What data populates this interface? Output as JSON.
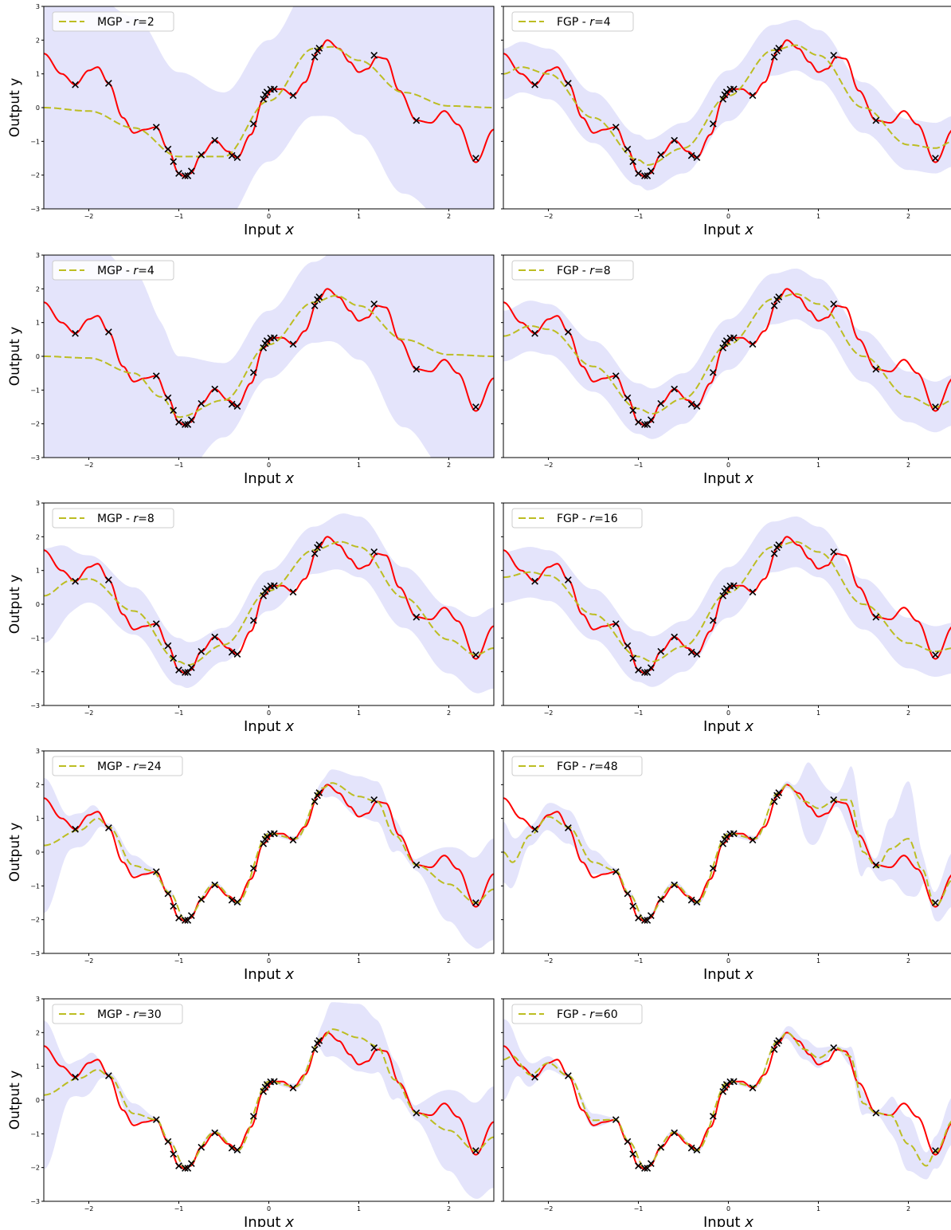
{
  "figure": {
    "shared_ylabel": "Output y",
    "shared_xlabel_text": "Input",
    "shared_xlabel_var": "x"
  },
  "colors": {
    "band": "#e4e4fb",
    "truth": "#ff0000",
    "mean": "#bcbd22",
    "points": "#000000",
    "axes": "#000000"
  },
  "chart_data": [
    {
      "type": "line",
      "panel": "MGP r=2",
      "legend": {
        "method": "MGP",
        "sep": " - ",
        "var": "r",
        "eq": "=",
        "value": "2"
      },
      "xlim": [
        -2.5,
        2.5
      ],
      "ylim": [
        -3,
        3
      ],
      "xticks": [
        -2,
        -1,
        0,
        1,
        2
      ],
      "yticks": [
        -3,
        -2,
        -1,
        0,
        1,
        2,
        3
      ],
      "show_yticklabels": true,
      "show_ylabel": true,
      "mean": {
        "x": [
          -2.5,
          -2.0,
          -1.5,
          -1.0,
          -0.5,
          0.0,
          0.5,
          0.7,
          1.0,
          1.5,
          2.0,
          2.5
        ],
        "y": [
          0.0,
          -0.1,
          -0.6,
          -1.45,
          -1.45,
          0.2,
          1.75,
          1.8,
          1.4,
          0.45,
          0.05,
          0.0
        ]
      },
      "band_width": {
        "x": [
          -2.5,
          -2.0,
          -1.5,
          -1.0,
          -0.5,
          0.0,
          0.5,
          1.0,
          1.5,
          2.0,
          2.5
        ],
        "w": [
          3.5,
          3.5,
          3.3,
          2.5,
          1.9,
          1.8,
          2.0,
          2.2,
          3.0,
          3.5,
          3.5
        ]
      }
    },
    {
      "type": "line",
      "panel": "FGP r=4",
      "legend": {
        "method": "FGP",
        "sep": " - ",
        "var": "r",
        "eq": "=",
        "value": "4"
      },
      "xlim": [
        -2.5,
        2.5
      ],
      "ylim": [
        -3,
        3
      ],
      "xticks": [
        -2,
        -1,
        0,
        1,
        2
      ],
      "yticks": [
        -3,
        -2,
        -1,
        0,
        1,
        2,
        3
      ],
      "show_yticklabels": false,
      "show_ylabel": false,
      "mean": {
        "x": [
          -2.5,
          -2.3,
          -2.0,
          -1.5,
          -1.0,
          -0.9,
          -0.5,
          0.0,
          0.5,
          0.75,
          1.0,
          1.5,
          2.0,
          2.3,
          2.5
        ],
        "y": [
          1.0,
          1.2,
          1.0,
          -0.3,
          -1.55,
          -1.7,
          -1.2,
          0.35,
          1.7,
          1.85,
          1.55,
          0.0,
          -1.1,
          -1.2,
          -1.0
        ]
      },
      "band_width": {
        "x": [
          -2.5,
          2.5
        ],
        "w": [
          0.75,
          0.75
        ]
      }
    },
    {
      "type": "line",
      "panel": "MGP r=4",
      "legend": {
        "method": "MGP",
        "sep": " - ",
        "var": "r",
        "eq": "=",
        "value": "4"
      },
      "xlim": [
        -2.5,
        2.5
      ],
      "ylim": [
        -3,
        3
      ],
      "xticks": [
        -2,
        -1,
        0,
        1,
        2
      ],
      "yticks": [
        -3,
        -2,
        -1,
        0,
        1,
        2,
        3
      ],
      "show_yticklabels": true,
      "show_ylabel": true,
      "mean": {
        "x": [
          -2.5,
          -2.0,
          -1.5,
          -1.2,
          -1.0,
          -0.5,
          0.0,
          0.5,
          0.75,
          1.0,
          1.5,
          2.0,
          2.5
        ],
        "y": [
          0.0,
          -0.05,
          -0.5,
          -1.2,
          -1.8,
          -1.3,
          0.35,
          1.6,
          1.8,
          1.5,
          0.5,
          0.05,
          0.0
        ]
      },
      "band_width": {
        "x": [
          -2.5,
          -2.0,
          -1.5,
          -1.0,
          -0.5,
          0.0,
          0.5,
          1.0,
          1.5,
          2.0,
          2.5
        ],
        "w": [
          3.5,
          3.5,
          3.0,
          1.8,
          1.1,
          1.0,
          1.2,
          1.6,
          2.6,
          3.5,
          3.5
        ]
      }
    },
    {
      "type": "line",
      "panel": "FGP r=8",
      "legend": {
        "method": "FGP",
        "sep": " - ",
        "var": "r",
        "eq": "=",
        "value": "8"
      },
      "xlim": [
        -2.5,
        2.5
      ],
      "ylim": [
        -3,
        3
      ],
      "xticks": [
        -2,
        -1,
        0,
        1,
        2
      ],
      "yticks": [
        -3,
        -2,
        -1,
        0,
        1,
        2,
        3
      ],
      "show_yticklabels": false,
      "show_ylabel": false,
      "mean": {
        "x": [
          -2.5,
          -2.2,
          -2.0,
          -1.5,
          -1.0,
          -0.85,
          -0.5,
          0.0,
          0.5,
          0.75,
          1.0,
          1.5,
          2.0,
          2.3,
          2.5
        ],
        "y": [
          0.6,
          0.9,
          0.8,
          -0.3,
          -1.55,
          -1.7,
          -1.25,
          0.35,
          1.7,
          1.85,
          1.55,
          0.0,
          -1.2,
          -1.5,
          -1.3
        ]
      },
      "band_width": {
        "x": [
          -2.5,
          2.5
        ],
        "w": [
          0.75,
          0.75
        ]
      }
    },
    {
      "type": "line",
      "panel": "MGP r=8",
      "legend": {
        "method": "MGP",
        "sep": " - ",
        "var": "r",
        "eq": "=",
        "value": "8"
      },
      "xlim": [
        -2.5,
        2.5
      ],
      "ylim": [
        -3,
        3
      ],
      "xticks": [
        -2,
        -1,
        0,
        1,
        2
      ],
      "yticks": [
        -3,
        -2,
        -1,
        0,
        1,
        2,
        3
      ],
      "show_yticklabels": true,
      "show_ylabel": true,
      "mean": {
        "x": [
          -2.5,
          -2.2,
          -2.0,
          -1.5,
          -1.0,
          -0.9,
          -0.5,
          0.0,
          0.5,
          0.8,
          1.0,
          1.5,
          2.0,
          2.3,
          2.5
        ],
        "y": [
          0.25,
          0.7,
          0.75,
          -0.2,
          -1.7,
          -1.8,
          -1.2,
          0.4,
          1.6,
          1.85,
          1.7,
          0.2,
          -1.05,
          -1.5,
          -1.3
        ]
      },
      "band_width": {
        "x": [
          -2.5,
          -2.0,
          -1.5,
          -1.0,
          -0.5,
          0.0,
          0.5,
          1.0,
          1.5,
          2.0,
          2.5
        ],
        "w": [
          1.4,
          0.7,
          0.7,
          0.7,
          0.5,
          0.6,
          0.7,
          0.9,
          0.9,
          1.0,
          1.2
        ]
      }
    },
    {
      "type": "line",
      "panel": "FGP r=16",
      "legend": {
        "method": "FGP",
        "sep": " - ",
        "var": "r",
        "eq": "=",
        "value": "16"
      },
      "xlim": [
        -2.5,
        2.5
      ],
      "ylim": [
        -3,
        3
      ],
      "xticks": [
        -2,
        -1,
        0,
        1,
        2
      ],
      "yticks": [
        -3,
        -2,
        -1,
        0,
        1,
        2,
        3
      ],
      "show_yticklabels": false,
      "show_ylabel": false,
      "mean": {
        "x": [
          -2.5,
          -2.2,
          -2.0,
          -1.5,
          -1.0,
          -0.85,
          -0.5,
          0.0,
          0.5,
          0.75,
          1.0,
          1.5,
          2.0,
          2.3,
          2.5
        ],
        "y": [
          0.8,
          0.95,
          0.85,
          -0.3,
          -1.55,
          -1.7,
          -1.25,
          0.35,
          1.7,
          1.85,
          1.55,
          0.0,
          -1.15,
          -1.4,
          -1.3
        ]
      },
      "band_width": {
        "x": [
          -2.5,
          2.5
        ],
        "w": [
          0.75,
          0.75
        ]
      }
    },
    {
      "type": "line",
      "panel": "MGP r=24",
      "legend": {
        "method": "MGP",
        "sep": " - ",
        "var": "r",
        "eq": "=",
        "value": "24"
      },
      "xlim": [
        -2.5,
        2.5
      ],
      "ylim": [
        -3,
        3
      ],
      "xticks": [
        -2,
        -1,
        0,
        1,
        2
      ],
      "yticks": [
        -3,
        -2,
        -1,
        0,
        1,
        2,
        3
      ],
      "show_yticklabels": true,
      "show_ylabel": true,
      "mean": {
        "x": [
          -2.5,
          -2.1,
          -1.9,
          -1.78,
          -1.5,
          -1.3,
          -1.1,
          -0.93,
          -0.6,
          -0.35,
          0.0,
          0.3,
          0.6,
          0.7,
          1.0,
          1.2,
          1.4,
          1.64,
          2.0,
          2.3,
          2.5
        ],
        "y": [
          0.2,
          0.65,
          1.0,
          0.75,
          -0.4,
          -0.55,
          -1.2,
          -2.0,
          -0.95,
          -1.5,
          0.55,
          0.4,
          1.9,
          2.05,
          1.65,
          1.5,
          0.5,
          -0.38,
          -0.95,
          -1.5,
          -1.1
        ]
      },
      "band_width": {
        "x": [
          -2.5,
          -2.2,
          -2.0,
          -1.8,
          -1.5,
          -1.25,
          -1.0,
          0.0,
          0.5,
          0.7,
          1.0,
          1.3,
          1.6,
          2.0,
          2.2,
          2.5
        ],
        "w": [
          2.0,
          0.5,
          0.5,
          0.1,
          0.3,
          0.08,
          0.06,
          0.06,
          0.08,
          0.4,
          0.6,
          0.6,
          0.15,
          1.1,
          1.3,
          1.5
        ]
      }
    },
    {
      "type": "line",
      "panel": "FGP r=48",
      "legend": {
        "method": "FGP",
        "sep": " - ",
        "var": "r",
        "eq": "=",
        "value": "48"
      },
      "xlim": [
        -2.5,
        2.5
      ],
      "ylim": [
        -3,
        3
      ],
      "xticks": [
        -2,
        -1,
        0,
        1,
        2
      ],
      "yticks": [
        -3,
        -2,
        -1,
        0,
        1,
        2,
        3
      ],
      "show_yticklabels": false,
      "show_ylabel": false,
      "mean": {
        "x": [
          -2.5,
          -2.4,
          -2.2,
          -2.0,
          -1.78,
          -1.5,
          -1.25,
          -1.1,
          -0.93,
          -0.6,
          -0.35,
          0.0,
          0.3,
          0.55,
          0.65,
          0.85,
          1.0,
          1.2,
          1.35,
          1.5,
          1.65,
          1.8,
          2.0,
          2.15,
          2.3,
          2.5
        ],
        "y": [
          0.0,
          -0.3,
          0.5,
          1.05,
          0.75,
          -0.3,
          -0.55,
          -1.25,
          -2.0,
          -0.95,
          -1.5,
          0.55,
          0.4,
          1.75,
          2.0,
          1.5,
          1.3,
          1.55,
          1.55,
          0.0,
          -0.45,
          0.1,
          0.4,
          -0.5,
          -1.6,
          -0.8
        ]
      },
      "band_width": {
        "x": [
          -2.5,
          -2.2,
          -1.8,
          -1.5,
          -1.25,
          0.5,
          0.7,
          0.9,
          1.2,
          1.4,
          1.6,
          1.8,
          2.0,
          2.2,
          2.5
        ],
        "w": [
          0.9,
          0.3,
          0.5,
          0.35,
          0.08,
          0.08,
          0.1,
          1.2,
          0.2,
          1.1,
          0.2,
          0.9,
          1.7,
          0.3,
          0.8
        ]
      }
    },
    {
      "type": "line",
      "panel": "MGP r=30",
      "legend": {
        "method": "MGP",
        "sep": " - ",
        "var": "r",
        "eq": "=",
        "value": "30"
      },
      "xlim": [
        -2.5,
        2.5
      ],
      "ylim": [
        -3,
        3
      ],
      "xticks": [
        -2,
        -1,
        0,
        1,
        2
      ],
      "yticks": [
        -3,
        -2,
        -1,
        0,
        1,
        2,
        3
      ],
      "show_yticklabels": true,
      "show_ylabel": true,
      "mean": {
        "x": [
          -2.5,
          -2.1,
          -1.9,
          -1.78,
          -1.5,
          -1.25,
          -1.1,
          -0.93,
          -0.6,
          -0.35,
          0.0,
          0.3,
          0.6,
          0.7,
          1.0,
          1.2,
          1.4,
          1.64,
          2.0,
          2.3,
          2.5
        ],
        "y": [
          0.15,
          0.65,
          0.9,
          0.72,
          -0.4,
          -0.58,
          -1.25,
          -2.0,
          -0.95,
          -1.5,
          0.55,
          0.4,
          1.85,
          2.1,
          1.85,
          1.6,
          0.6,
          -0.38,
          -0.9,
          -1.5,
          -1.1
        ]
      },
      "band_width": {
        "x": [
          -2.5,
          -2.2,
          -2.0,
          -1.8,
          -1.5,
          -1.25,
          -1.0,
          0.0,
          0.5,
          0.7,
          1.0,
          1.3,
          1.6,
          2.0,
          2.2,
          2.5
        ],
        "w": [
          2.2,
          0.5,
          0.6,
          0.1,
          0.3,
          0.08,
          0.06,
          0.06,
          0.1,
          0.8,
          1.0,
          0.7,
          0.2,
          1.2,
          1.4,
          1.5
        ]
      }
    },
    {
      "type": "line",
      "panel": "FGP r=60",
      "legend": {
        "method": "FGP",
        "sep": " - ",
        "var": "r",
        "eq": "=",
        "value": "60"
      },
      "xlim": [
        -2.5,
        2.5
      ],
      "ylim": [
        -3,
        3
      ],
      "xticks": [
        -2,
        -1,
        0,
        1,
        2
      ],
      "yticks": [
        -3,
        -2,
        -1,
        0,
        1,
        2,
        3
      ],
      "show_yticklabels": false,
      "show_ylabel": false,
      "mean": {
        "x": [
          -2.5,
          -2.4,
          -2.2,
          -2.0,
          -1.78,
          -1.5,
          -1.25,
          -1.1,
          -0.93,
          -0.6,
          -0.35,
          0.0,
          0.3,
          0.55,
          0.65,
          0.85,
          1.0,
          1.2,
          1.35,
          1.5,
          1.64,
          1.8,
          2.0,
          2.2,
          2.3,
          2.5
        ],
        "y": [
          1.2,
          1.3,
          0.75,
          1.1,
          0.72,
          -0.6,
          -0.58,
          -1.25,
          -2.0,
          -0.95,
          -1.5,
          0.55,
          0.4,
          1.75,
          2.0,
          1.5,
          1.25,
          1.55,
          1.3,
          -0.1,
          -0.38,
          -0.45,
          -1.3,
          -1.95,
          -1.55,
          -0.6
        ]
      },
      "band_width": {
        "x": [
          -2.5,
          -2.3,
          -2.0,
          -1.78,
          -1.5,
          -1.25,
          0.5,
          0.8,
          1.0,
          1.2,
          1.45,
          1.64,
          1.85,
          2.0,
          2.2,
          2.5
        ],
        "w": [
          1.2,
          0.4,
          0.2,
          0.05,
          0.2,
          0.06,
          0.06,
          0.3,
          0.3,
          0.06,
          0.4,
          0.06,
          0.6,
          0.8,
          0.4,
          0.7
        ]
      }
    }
  ],
  "truth_points": [
    [
      -2.15,
      0.68
    ],
    [
      -1.78,
      0.72
    ],
    [
      -1.25,
      -0.58
    ],
    [
      -1.12,
      -1.23
    ],
    [
      -1.06,
      -1.6
    ],
    [
      -1.0,
      -1.95
    ],
    [
      -0.93,
      -2.02
    ],
    [
      -0.9,
      -2.02
    ],
    [
      -0.86,
      -1.88
    ],
    [
      -0.75,
      -1.4
    ],
    [
      -0.6,
      -0.97
    ],
    [
      -0.41,
      -1.42
    ],
    [
      -0.35,
      -1.48
    ],
    [
      -0.17,
      -0.48
    ],
    [
      -0.06,
      0.25
    ],
    [
      -0.04,
      0.38
    ],
    [
      -0.02,
      0.46
    ],
    [
      0.02,
      0.54
    ],
    [
      0.06,
      0.55
    ],
    [
      0.27,
      0.36
    ],
    [
      0.51,
      1.5
    ],
    [
      0.54,
      1.68
    ],
    [
      0.56,
      1.76
    ],
    [
      1.17,
      1.55
    ],
    [
      1.64,
      -0.38
    ],
    [
      2.3,
      -1.5
    ]
  ]
}
